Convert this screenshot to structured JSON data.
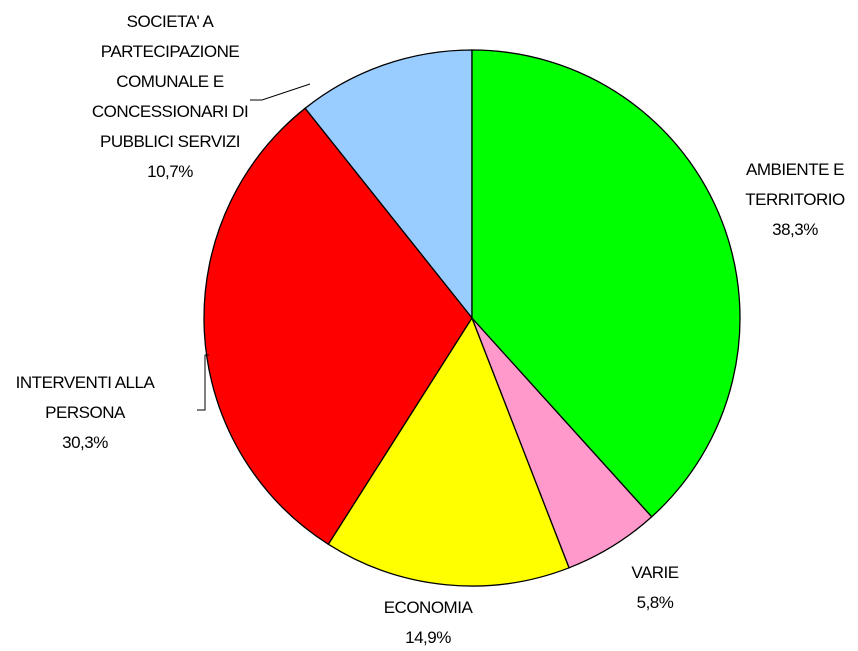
{
  "chart_data": {
    "type": "pie",
    "categories": [
      "AMBIENTE E\nTERRITORIO",
      "VARIE",
      "ECONOMIA",
      "INTERVENTI ALLA\nPERSONA",
      "SOCIETA' A\nPARTECIPAZIONE\nCOMUNALE E\nCONCESSIONARI DI\nPUBBLICI SERVIZI"
    ],
    "values": [
      38.3,
      5.8,
      14.9,
      30.3,
      10.7
    ],
    "value_labels": [
      "38,3%",
      "5,8%",
      "14,9%",
      "30,3%",
      "10,7%"
    ],
    "colors": [
      "#00ff00",
      "#ff99cc",
      "#ffff00",
      "#ff0000",
      "#99ccff"
    ]
  }
}
